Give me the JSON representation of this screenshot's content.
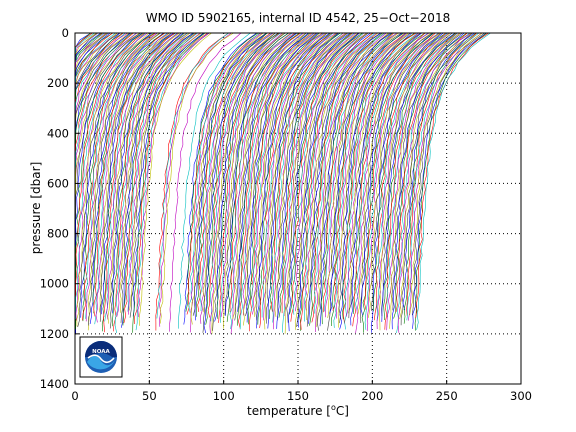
{
  "chart_data": {
    "type": "line",
    "title": "WMO ID 5902165, internal ID 4542, 25−Oct−2018",
    "xlabel_main": "temperature [",
    "xlabel_sup": "o",
    "xlabel_end": "C]",
    "ylabel": "pressure [dbar]",
    "xlim": [
      0,
      300
    ],
    "ylim": [
      0,
      1400
    ],
    "y_reversed": true,
    "grid": true,
    "xticks": [
      0,
      50,
      100,
      150,
      200,
      250,
      300
    ],
    "yticks": [
      0,
      200,
      400,
      600,
      800,
      1000,
      1200,
      1400
    ],
    "profile_offset_step": 1,
    "profile_count": 270,
    "profile_surface_temp_start": 10,
    "profile_max_pressure": 1200,
    "colors": [
      "#0000ff",
      "#008000",
      "#ff0000",
      "#00bfbf",
      "#bf00bf",
      "#bfbf00",
      "#404040"
    ]
  },
  "logo": {
    "name": "noaa-logo",
    "text": "NOAA"
  }
}
